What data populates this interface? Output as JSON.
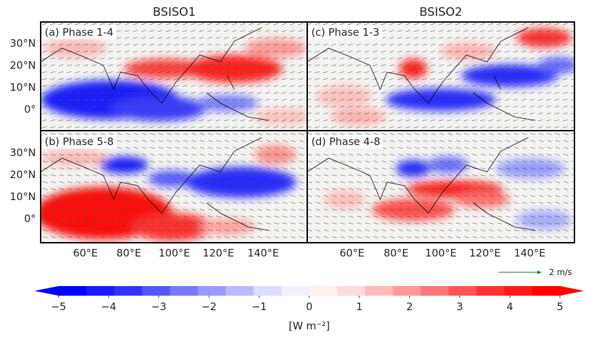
{
  "columns": [
    {
      "title": "BSISO1"
    },
    {
      "title": "BSISO2"
    }
  ],
  "panels": {
    "a": {
      "label": "(a) Phase 1-4"
    },
    "b": {
      "label": "(b) Phase 5-8"
    },
    "c": {
      "label": "(c) Phase 1-3"
    },
    "d": {
      "label": "(d) Phase 4-8"
    }
  },
  "axes": {
    "lat_ticks": [
      "30°N",
      "20°N",
      "10°N",
      "0°"
    ],
    "lon_ticks": [
      "60°E",
      "80°E",
      "100°E",
      "120°E",
      "140°E"
    ]
  },
  "colorbar": {
    "ticks": [
      "−5",
      "−4",
      "−3",
      "−2",
      "−1",
      "0",
      "1",
      "2",
      "3",
      "4",
      "5"
    ],
    "label": "[W m⁻²]",
    "colors": [
      "#0000ff",
      "#1a1aff",
      "#3333ff",
      "#5555ff",
      "#7777ff",
      "#9999ff",
      "#bbbbff",
      "#dcdcff",
      "#f0f0ff",
      "#fff0f0",
      "#ffdcdc",
      "#ffbbbb",
      "#ff9999",
      "#ff7777",
      "#ff5555",
      "#ff3333",
      "#ff1a1a",
      "#ff0000"
    ]
  },
  "vector_reference": {
    "label": "2 m/s",
    "color": "#008000"
  },
  "map_data": {
    "extent": {
      "lon": [
        40,
        160
      ],
      "lat": [
        -10,
        40
      ]
    },
    "variable": "OLR-like anomaly (shaded) with low-level wind vectors",
    "panels_description": {
      "a": "Negative (blue) anomalies over Indian Ocean/equatorial band 0-10N; positive (red) over 10-25N from Bay of Bengal to western Pacific",
      "b": "Positive (red) over Indian Ocean 0-15N; negative (blue) from India/Bay of Bengal to western Pacific 10-25N",
      "c": "Negative band tilting from equatorial Indian Ocean to northwest Pacific; positive over Bay of Bengal and north Pacific",
      "d": "Negative over Bay of Bengal/India ~20N; positive band 5-15N extending to Philippines"
    }
  }
}
